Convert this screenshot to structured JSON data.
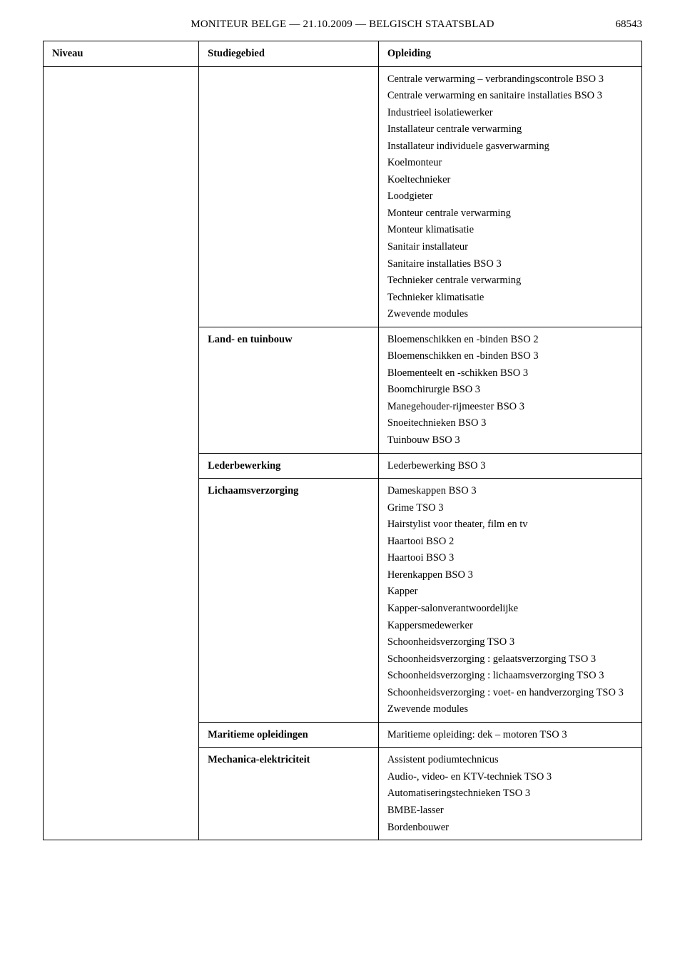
{
  "header": {
    "running_title": "MONITEUR BELGE — 21.10.2009 — BELGISCH STAATSBLAD",
    "page_number": "68543"
  },
  "table": {
    "columns": {
      "niveau": "Niveau",
      "studiegebied": "Studiegebied",
      "opleiding": "Opleiding"
    },
    "rows": [
      {
        "studiegebied": "",
        "opleidingen": [
          "Centrale verwarming – verbrandings­controle BSO 3",
          "Centrale verwarming en sanitaire instal­laties BSO 3",
          "Industrieel isolatiewerker",
          "Installateur centrale verwarming",
          "Installateur individuele gasverwar­ming",
          "Koelmonteur",
          "Koeltechnieker",
          "Loodgieter",
          "Monteur centrale verwarming",
          "Monteur klimatisatie",
          "Sanitair installateur",
          "Sanitaire installaties BSO 3",
          "Technieker centrale verwarming",
          "Technieker klimatisatie",
          "Zwevende modules"
        ]
      },
      {
        "studiegebied": "Land- en tuinbouw",
        "opleidingen": [
          "Bloemenschikken en -binden BSO 2",
          "Bloemenschikken en -binden BSO 3",
          "Bloementeelt en -schikken BSO 3",
          "Boomchirurgie BSO 3",
          "Manegehouder-rijmeester BSO 3",
          "Snoeitechnieken BSO 3",
          "Tuinbouw BSO 3"
        ]
      },
      {
        "studiegebied": "Lederbewerking",
        "opleidingen": [
          "Lederbewerking BSO 3"
        ]
      },
      {
        "studiegebied": "Lichaamsverzorging",
        "opleidingen": [
          "Dameskappen BSO 3",
          "Grime TSO 3",
          "Hairstylist voor theater, film en tv",
          "Haartooi BSO 2",
          "Haartooi BSO 3",
          "Herenkappen BSO 3",
          "Kapper",
          "Kapper-salonverantwoordelijke",
          "Kappersmedewerker",
          "Schoonheidsverzorging TSO 3",
          "Schoonheidsverzorging : gelaatsverzor­ging TSO 3",
          "Schoonheidsverzorging : lichaamsver­zorging TSO 3",
          "Schoonheidsverzorging : voet- en hand­verzorging TSO 3",
          "Zwevende modules"
        ]
      },
      {
        "studiegebied": "Maritieme opleidingen",
        "opleidingen": [
          "Maritieme opleiding: dek – motoren TSO 3"
        ]
      },
      {
        "studiegebied": "Mechanica-elektriciteit",
        "opleidingen": [
          "Assistent podiumtechnicus",
          "Audio-, video- en KTV-techniek TSO 3",
          "Automatiseringstechnieken TSO 3",
          "BMBE-lasser",
          "Bordenbouwer"
        ]
      }
    ]
  }
}
